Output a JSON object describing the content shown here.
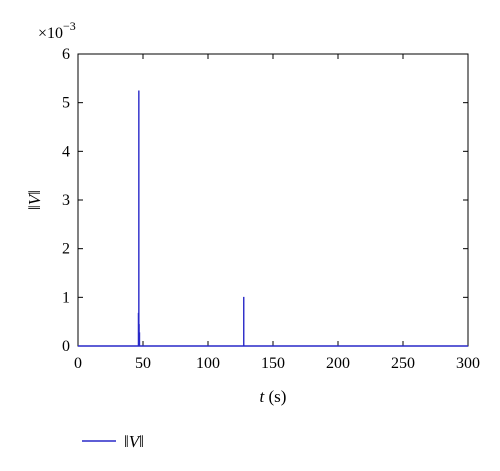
{
  "chart_data": {
    "type": "line",
    "x": [
      0,
      46.5,
      46.5,
      46.5,
      46.8,
      46.8,
      46.8,
      47.0,
      47.0,
      47.0,
      47.3,
      47.3,
      47.3,
      127.5,
      127.5,
      127.5,
      300
    ],
    "series": [
      {
        "name": "‖V‖",
        "values": [
          0,
          0,
          0.00068,
          0,
          0,
          0.00525,
          0,
          0,
          0.00045,
          0,
          0,
          0.00028,
          0,
          0,
          0.00101,
          0,
          0
        ],
        "color": "#2828c8"
      }
    ],
    "xlabel_italic": "t",
    "xlabel_unit": "(s)",
    "ylabel": "‖V‖",
    "xlim": [
      0,
      300
    ],
    "ylim": [
      0,
      0.006
    ],
    "xticks": [
      0,
      50,
      100,
      150,
      200,
      250,
      300
    ],
    "yticks": [
      0,
      1,
      2,
      3,
      4,
      5,
      6
    ],
    "y_scale_label_base": "×10",
    "y_scale_label_exp": "−3",
    "y_scale_factor": 0.001,
    "grid": false,
    "legend_position": "bottom-left"
  }
}
